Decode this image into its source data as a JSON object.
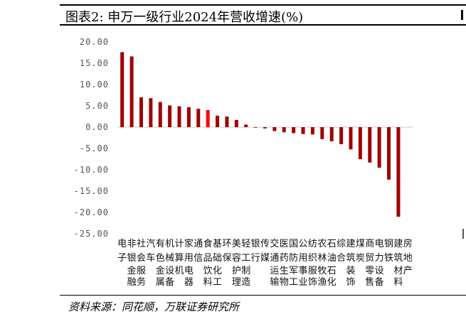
{
  "header": {
    "title": "图表2:  申万一级行业2024年营收增速(%)"
  },
  "footer": {
    "source": "资料来源：同花顺，万联证券研究所"
  },
  "colors": {
    "bar": "#a00000",
    "highlight": "#ff0000",
    "axis_text": "#555555"
  },
  "chart_data": {
    "type": "bar",
    "title": "申万一级行业2024年营收增速(%)",
    "ylim": [
      -25,
      20
    ],
    "yticks": [
      "20.00",
      "15.00",
      "10.00",
      "5.00",
      "0.00",
      "-5.00",
      "-10.00",
      "-15.00",
      "-20.00",
      "-25.00"
    ],
    "ytick_values": [
      20,
      15,
      10,
      5,
      0,
      -5,
      -10,
      -15,
      -20,
      -25
    ],
    "grid": false,
    "highlight_index": 9,
    "categories": [
      "电子",
      "非银金融",
      "社会服务",
      "汽车",
      "有色金属",
      "机械设备",
      "计算机",
      "家用电器",
      "通信",
      "食品饮料",
      "基础化工",
      "环保",
      "美容护理",
      "轻工制造",
      "银行",
      "传媒",
      "交通运输",
      "医药生物",
      "国防军工",
      "公用事业",
      "纺织服饰",
      "农林牧渔",
      "石油石化",
      "综合",
      "建筑装饰",
      "煤炭",
      "商贸零售",
      "电力设备",
      "钢铁",
      "建筑材料",
      "房地产"
    ],
    "category_lines": [
      [
        "电",
        "子",
        "",
        ""
      ],
      [
        "非",
        "银",
        "金",
        "融"
      ],
      [
        "社",
        "会",
        "服",
        "务"
      ],
      [
        "汽",
        "车",
        "",
        ""
      ],
      [
        "有",
        "色",
        "金",
        "属"
      ],
      [
        "机",
        "械",
        "设",
        "备"
      ],
      [
        "计",
        "算",
        "机",
        ""
      ],
      [
        "家",
        "用",
        "电",
        "器"
      ],
      [
        "通",
        "信",
        "",
        ""
      ],
      [
        "食",
        "品",
        "饮",
        "料"
      ],
      [
        "基",
        "础",
        "化",
        "工"
      ],
      [
        "环",
        "保",
        "",
        ""
      ],
      [
        "美",
        "容",
        "护",
        "理"
      ],
      [
        "轻",
        "工",
        "制",
        "造"
      ],
      [
        "银",
        "行",
        "",
        ""
      ],
      [
        "传",
        "媒",
        "",
        ""
      ],
      [
        "交",
        "通",
        "运",
        "输"
      ],
      [
        "医",
        "药",
        "生",
        "物"
      ],
      [
        "国",
        "防",
        "军",
        "工"
      ],
      [
        "公",
        "用",
        "事",
        "业"
      ],
      [
        "纺",
        "织",
        "服",
        "饰"
      ],
      [
        "农",
        "林",
        "牧",
        "渔"
      ],
      [
        "石",
        "油",
        "石",
        "化"
      ],
      [
        "综",
        "合",
        "",
        ""
      ],
      [
        "建",
        "筑",
        "装",
        "饰"
      ],
      [
        "煤",
        "炭",
        "",
        ""
      ],
      [
        "商",
        "贸",
        "零",
        "售"
      ],
      [
        "电",
        "力",
        "设",
        "备"
      ],
      [
        "钢",
        "铁",
        "",
        ""
      ],
      [
        "建",
        "筑",
        "材",
        "料"
      ],
      [
        "房",
        "地",
        "产",
        ""
      ]
    ],
    "values": [
      17.6,
      16.6,
      7.0,
      6.8,
      5.9,
      5.1,
      4.9,
      4.7,
      4.3,
      4.0,
      2.7,
      2.5,
      1.7,
      0.6,
      -0.1,
      -0.3,
      -0.9,
      -1.2,
      -1.4,
      -1.6,
      -1.7,
      -2.8,
      -3.3,
      -4.0,
      -5.2,
      -7.5,
      -8.3,
      -9.5,
      -12.3,
      -21.0,
      null
    ]
  }
}
